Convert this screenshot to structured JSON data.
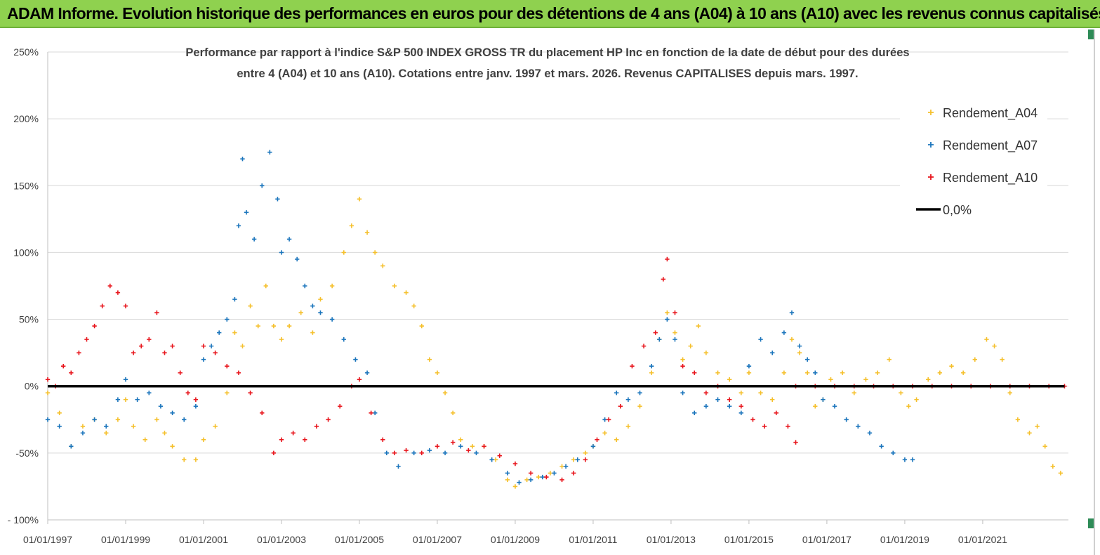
{
  "header": {
    "title": "ADAM Informe. Evolution historique des performances en euros pour des détentions de 4 ans (A04) à 10 ans (A10) avec les revenus connus capitalisés"
  },
  "chart_data": {
    "type": "scatter",
    "title_line1": "Performance par rapport à l'indice S&P 500 INDEX GROSS TR  du placement HP Inc en fonction de la date de début pour des durées",
    "title_line2": "entre 4 (A04) et 10 ans (A10). Cotations entre janv. 1997 et mars. 2026. Revenus CAPITALISES depuis mars. 1997.",
    "ylim": [
      -100,
      250
    ],
    "xlim": [
      1997.0,
      2023.2
    ],
    "y_ticks": [
      {
        "value": 250,
        "label": "250%"
      },
      {
        "value": 200,
        "label": "200%"
      },
      {
        "value": 150,
        "label": "150%"
      },
      {
        "value": 100,
        "label": "100%"
      },
      {
        "value": 50,
        "label": "50%"
      },
      {
        "value": 0,
        "label": "0%"
      },
      {
        "value": -50,
        "label": "-50%"
      },
      {
        "value": -100,
        "label": "- 100%"
      }
    ],
    "x_ticks": [
      {
        "value": 1997,
        "label": "01/01/1997"
      },
      {
        "value": 1999,
        "label": "01/01/1999"
      },
      {
        "value": 2001,
        "label": "01/01/2001"
      },
      {
        "value": 2003,
        "label": "01/01/2003"
      },
      {
        "value": 2005,
        "label": "01/01/2005"
      },
      {
        "value": 2007,
        "label": "01/01/2007"
      },
      {
        "value": 2009,
        "label": "01/01/2009"
      },
      {
        "value": 2011,
        "label": "01/01/2011"
      },
      {
        "value": 2013,
        "label": "01/01/2013"
      },
      {
        "value": 2015,
        "label": "01/01/2015"
      },
      {
        "value": 2017,
        "label": "01/01/2017"
      },
      {
        "value": 2019,
        "label": "01/01/2019"
      },
      {
        "value": 2021,
        "label": "01/01/2021"
      }
    ],
    "legend": [
      {
        "name": "Rendement_A04",
        "color": "#f5c02c",
        "marker": "plus"
      },
      {
        "name": "Rendement_A07",
        "color": "#1b75bc",
        "marker": "plus"
      },
      {
        "name": "Rendement_A10",
        "color": "#e8161d",
        "marker": "plus"
      },
      {
        "name": "0,0%",
        "color": "#000000",
        "marker": "line"
      }
    ],
    "series": [
      {
        "name": "Rendement_A04",
        "color": "#f5c02c",
        "points": [
          [
            1997.0,
            -5
          ],
          [
            1997.3,
            -20
          ],
          [
            1997.6,
            -45
          ],
          [
            1997.9,
            -30
          ],
          [
            1998.2,
            -25
          ],
          [
            1998.5,
            -35
          ],
          [
            1998.8,
            -25
          ],
          [
            1999.0,
            -10
          ],
          [
            1999.2,
            -30
          ],
          [
            1999.5,
            -40
          ],
          [
            1999.8,
            -25
          ],
          [
            2000.0,
            -35
          ],
          [
            2000.2,
            -45
          ],
          [
            2000.5,
            -55
          ],
          [
            2000.8,
            -55
          ],
          [
            2001.0,
            -40
          ],
          [
            2001.3,
            -30
          ],
          [
            2001.6,
            -5
          ],
          [
            2001.8,
            40
          ],
          [
            2002.0,
            30
          ],
          [
            2002.2,
            60
          ],
          [
            2002.4,
            45
          ],
          [
            2002.6,
            75
          ],
          [
            2002.8,
            45
          ],
          [
            2003.0,
            35
          ],
          [
            2003.2,
            45
          ],
          [
            2003.5,
            55
          ],
          [
            2003.8,
            40
          ],
          [
            2004.0,
            65
          ],
          [
            2004.3,
            75
          ],
          [
            2004.6,
            100
          ],
          [
            2004.8,
            120
          ],
          [
            2005.0,
            140
          ],
          [
            2005.2,
            115
          ],
          [
            2005.4,
            100
          ],
          [
            2005.6,
            90
          ],
          [
            2005.9,
            75
          ],
          [
            2006.2,
            70
          ],
          [
            2006.4,
            60
          ],
          [
            2006.6,
            45
          ],
          [
            2006.8,
            20
          ],
          [
            2007.0,
            10
          ],
          [
            2007.2,
            -5
          ],
          [
            2007.4,
            -20
          ],
          [
            2007.6,
            -40
          ],
          [
            2007.9,
            -45
          ],
          [
            2008.2,
            -45
          ],
          [
            2008.5,
            -55
          ],
          [
            2008.8,
            -70
          ],
          [
            2009.0,
            -75
          ],
          [
            2009.3,
            -70
          ],
          [
            2009.6,
            -68
          ],
          [
            2009.9,
            -65
          ],
          [
            2010.2,
            -60
          ],
          [
            2010.5,
            -55
          ],
          [
            2010.8,
            -50
          ],
          [
            2011.0,
            -45
          ],
          [
            2011.3,
            -35
          ],
          [
            2011.6,
            -40
          ],
          [
            2011.9,
            -30
          ],
          [
            2012.2,
            -15
          ],
          [
            2012.5,
            10
          ],
          [
            2012.7,
            35
          ],
          [
            2012.9,
            55
          ],
          [
            2013.1,
            40
          ],
          [
            2013.3,
            20
          ],
          [
            2013.5,
            30
          ],
          [
            2013.7,
            45
          ],
          [
            2013.9,
            25
          ],
          [
            2014.2,
            10
          ],
          [
            2014.5,
            5
          ],
          [
            2014.8,
            -5
          ],
          [
            2015.0,
            10
          ],
          [
            2015.3,
            -5
          ],
          [
            2015.6,
            -10
          ],
          [
            2015.9,
            10
          ],
          [
            2016.1,
            35
          ],
          [
            2016.3,
            25
          ],
          [
            2016.5,
            10
          ],
          [
            2016.7,
            -15
          ],
          [
            2016.9,
            -10
          ],
          [
            2017.1,
            5
          ],
          [
            2017.4,
            10
          ],
          [
            2017.7,
            -5
          ],
          [
            2018.0,
            5
          ],
          [
            2018.3,
            10
          ],
          [
            2018.6,
            20
          ],
          [
            2018.9,
            -5
          ],
          [
            2019.1,
            -15
          ],
          [
            2019.3,
            -10
          ],
          [
            2019.6,
            5
          ],
          [
            2019.9,
            10
          ],
          [
            2020.2,
            15
          ],
          [
            2020.5,
            10
          ],
          [
            2020.8,
            20
          ],
          [
            2021.1,
            35
          ],
          [
            2021.3,
            30
          ],
          [
            2021.5,
            20
          ],
          [
            2021.7,
            -5
          ],
          [
            2021.9,
            -25
          ],
          [
            2022.2,
            -35
          ],
          [
            2022.4,
            -30
          ],
          [
            2022.6,
            -45
          ],
          [
            2022.8,
            -60
          ],
          [
            2023.0,
            -65
          ]
        ]
      },
      {
        "name": "Rendement_A07",
        "color": "#1b75bc",
        "points": [
          [
            1997.0,
            -25
          ],
          [
            1997.3,
            -30
          ],
          [
            1997.6,
            -45
          ],
          [
            1997.9,
            -35
          ],
          [
            1998.2,
            -25
          ],
          [
            1998.5,
            -30
          ],
          [
            1998.8,
            -10
          ],
          [
            1999.0,
            5
          ],
          [
            1999.3,
            -10
          ],
          [
            1999.6,
            -5
          ],
          [
            1999.9,
            -15
          ],
          [
            2000.2,
            -20
          ],
          [
            2000.5,
            -25
          ],
          [
            2000.8,
            -15
          ],
          [
            2001.0,
            20
          ],
          [
            2001.2,
            30
          ],
          [
            2001.4,
            40
          ],
          [
            2001.6,
            50
          ],
          [
            2001.8,
            65
          ],
          [
            2001.9,
            120
          ],
          [
            2002.0,
            170
          ],
          [
            2002.1,
            130
          ],
          [
            2002.3,
            110
          ],
          [
            2002.5,
            150
          ],
          [
            2002.7,
            175
          ],
          [
            2002.9,
            140
          ],
          [
            2003.0,
            100
          ],
          [
            2003.2,
            110
          ],
          [
            2003.4,
            95
          ],
          [
            2003.6,
            75
          ],
          [
            2003.8,
            60
          ],
          [
            2004.0,
            55
          ],
          [
            2004.3,
            50
          ],
          [
            2004.6,
            35
          ],
          [
            2004.9,
            20
          ],
          [
            2005.2,
            10
          ],
          [
            2005.4,
            -20
          ],
          [
            2005.7,
            -50
          ],
          [
            2006.0,
            -60
          ],
          [
            2006.4,
            -50
          ],
          [
            2006.8,
            -48
          ],
          [
            2007.2,
            -50
          ],
          [
            2007.6,
            -45
          ],
          [
            2008.0,
            -50
          ],
          [
            2008.4,
            -55
          ],
          [
            2008.8,
            -65
          ],
          [
            2009.1,
            -72
          ],
          [
            2009.4,
            -70
          ],
          [
            2009.7,
            -68
          ],
          [
            2010.0,
            -65
          ],
          [
            2010.3,
            -60
          ],
          [
            2010.6,
            -55
          ],
          [
            2011.0,
            -45
          ],
          [
            2011.3,
            -25
          ],
          [
            2011.6,
            -5
          ],
          [
            2011.9,
            -10
          ],
          [
            2012.2,
            -5
          ],
          [
            2012.5,
            15
          ],
          [
            2012.7,
            35
          ],
          [
            2012.9,
            50
          ],
          [
            2013.1,
            35
          ],
          [
            2013.3,
            -5
          ],
          [
            2013.6,
            -20
          ],
          [
            2013.9,
            -15
          ],
          [
            2014.2,
            -10
          ],
          [
            2014.5,
            -15
          ],
          [
            2014.8,
            -20
          ],
          [
            2015.0,
            15
          ],
          [
            2015.3,
            35
          ],
          [
            2015.6,
            25
          ],
          [
            2015.9,
            40
          ],
          [
            2016.1,
            55
          ],
          [
            2016.3,
            30
          ],
          [
            2016.5,
            20
          ],
          [
            2016.7,
            10
          ],
          [
            2016.9,
            -10
          ],
          [
            2017.2,
            -15
          ],
          [
            2017.5,
            -25
          ],
          [
            2017.8,
            -30
          ],
          [
            2018.1,
            -35
          ],
          [
            2018.4,
            -45
          ],
          [
            2018.7,
            -50
          ],
          [
            2019.0,
            -55
          ],
          [
            2019.2,
            -55
          ]
        ]
      },
      {
        "name": "Rendement_A10",
        "color": "#e8161d",
        "points": [
          [
            1997.0,
            5
          ],
          [
            1997.2,
            0
          ],
          [
            1997.4,
            15
          ],
          [
            1997.6,
            10
          ],
          [
            1997.8,
            25
          ],
          [
            1998.0,
            35
          ],
          [
            1998.2,
            45
          ],
          [
            1998.4,
            60
          ],
          [
            1998.6,
            75
          ],
          [
            1998.8,
            70
          ],
          [
            1999.0,
            60
          ],
          [
            1999.2,
            25
          ],
          [
            1999.4,
            30
          ],
          [
            1999.6,
            35
          ],
          [
            1999.8,
            55
          ],
          [
            2000.0,
            25
          ],
          [
            2000.2,
            30
          ],
          [
            2000.4,
            10
          ],
          [
            2000.6,
            -5
          ],
          [
            2000.8,
            -10
          ],
          [
            2001.0,
            30
          ],
          [
            2001.3,
            25
          ],
          [
            2001.6,
            15
          ],
          [
            2001.9,
            10
          ],
          [
            2002.2,
            -5
          ],
          [
            2002.5,
            -20
          ],
          [
            2002.8,
            -50
          ],
          [
            2003.0,
            -40
          ],
          [
            2003.3,
            -35
          ],
          [
            2003.6,
            -40
          ],
          [
            2003.9,
            -30
          ],
          [
            2004.2,
            -25
          ],
          [
            2004.5,
            -15
          ],
          [
            2004.8,
            0
          ],
          [
            2005.0,
            5
          ],
          [
            2005.3,
            -20
          ],
          [
            2005.6,
            -40
          ],
          [
            2005.9,
            -50
          ],
          [
            2006.2,
            -48
          ],
          [
            2006.6,
            -50
          ],
          [
            2007.0,
            -45
          ],
          [
            2007.4,
            -42
          ],
          [
            2007.8,
            -48
          ],
          [
            2008.2,
            -45
          ],
          [
            2008.6,
            -52
          ],
          [
            2009.0,
            -58
          ],
          [
            2009.4,
            -65
          ],
          [
            2009.8,
            -68
          ],
          [
            2010.2,
            -70
          ],
          [
            2010.5,
            -65
          ],
          [
            2010.8,
            -55
          ],
          [
            2011.1,
            -40
          ],
          [
            2011.4,
            -25
          ],
          [
            2011.7,
            -15
          ],
          [
            2012.0,
            15
          ],
          [
            2012.3,
            30
          ],
          [
            2012.6,
            40
          ],
          [
            2012.8,
            80
          ],
          [
            2012.9,
            95
          ],
          [
            2013.1,
            55
          ],
          [
            2013.3,
            15
          ],
          [
            2013.6,
            10
          ],
          [
            2013.9,
            -5
          ],
          [
            2014.2,
            0
          ],
          [
            2014.5,
            -10
          ],
          [
            2014.8,
            -15
          ],
          [
            2015.1,
            -25
          ],
          [
            2015.4,
            -30
          ],
          [
            2015.7,
            -20
          ],
          [
            2016.0,
            -30
          ],
          [
            2016.2,
            -42
          ]
        ]
      },
      {
        "name": "Rendement_A10_zero",
        "color": "#e8161d",
        "points": [
          [
            2016.2,
            0
          ],
          [
            2016.7,
            0
          ],
          [
            2017.2,
            0
          ],
          [
            2017.7,
            0
          ],
          [
            2018.2,
            0
          ],
          [
            2018.7,
            0
          ],
          [
            2019.2,
            0
          ],
          [
            2019.7,
            0
          ],
          [
            2020.2,
            0
          ],
          [
            2020.7,
            0
          ],
          [
            2021.2,
            0
          ],
          [
            2021.7,
            0
          ],
          [
            2022.2,
            0
          ],
          [
            2022.7,
            0
          ],
          [
            2023.1,
            0
          ]
        ]
      }
    ]
  }
}
